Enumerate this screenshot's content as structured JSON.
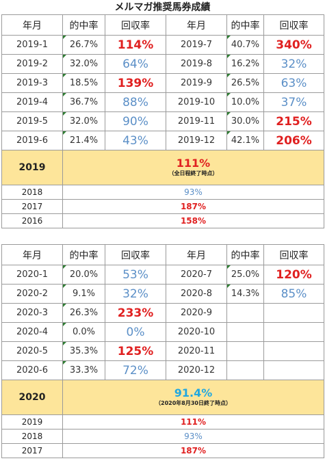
{
  "title": "メルマガ推奨馬券成績",
  "headers": [
    "年月",
    "的中率",
    "回収率",
    "年月",
    "的中率",
    "回収率"
  ],
  "section2019": {
    "rows": [
      {
        "m1": "2019-1",
        "h1": "26.7%",
        "r1": "114%",
        "c1": "red",
        "m2": "2019-7",
        "h2": "40.7%",
        "r2": "340%",
        "c2": "red"
      },
      {
        "m1": "2019-2",
        "h1": "32.0%",
        "r1": "64%",
        "c1": "blue",
        "m2": "2019-8",
        "h2": "16.2%",
        "r2": "32%",
        "c2": "blue"
      },
      {
        "m1": "2019-3",
        "h1": "18.5%",
        "r1": "139%",
        "c1": "red",
        "m2": "2019-9",
        "h2": "26.5%",
        "r2": "63%",
        "c2": "blue"
      },
      {
        "m1": "2019-4",
        "h1": "36.7%",
        "r1": "88%",
        "c1": "blue",
        "m2": "2019-10",
        "h2": "10.0%",
        "r2": "37%",
        "c2": "blue"
      },
      {
        "m1": "2019-5",
        "h1": "32.0%",
        "r1": "90%",
        "c1": "blue",
        "m2": "2019-11",
        "h2": "30.0%",
        "r2": "215%",
        "c2": "red"
      },
      {
        "m1": "2019-6",
        "h1": "21.4%",
        "r1": "43%",
        "c1": "blue",
        "m2": "2019-12",
        "h2": "42.1%",
        "r2": "206%",
        "c2": "red"
      }
    ],
    "summary": {
      "year": "2019",
      "value": "111%",
      "note": "（全日程終了時点）"
    },
    "past": [
      {
        "year": "2018",
        "value": "93%",
        "color": "blue"
      },
      {
        "year": "2017",
        "value": "187%",
        "color": "red"
      },
      {
        "year": "2016",
        "value": "158%",
        "color": "red"
      }
    ]
  },
  "section2020": {
    "rows": [
      {
        "m1": "2020-1",
        "h1": "20.0%",
        "r1": "53%",
        "c1": "blue",
        "m2": "2020-7",
        "h2": "25.0%",
        "r2": "120%",
        "c2": "red"
      },
      {
        "m1": "2020-2",
        "h1": "9.1%",
        "r1": "32%",
        "c1": "blue",
        "m2": "2020-8",
        "h2": "14.3%",
        "r2": "85%",
        "c2": "blue"
      },
      {
        "m1": "2020-3",
        "h1": "26.3%",
        "r1": "233%",
        "c1": "red",
        "m2": "2020-9",
        "h2": "",
        "r2": "",
        "c2": "blue"
      },
      {
        "m1": "2020-4",
        "h1": "0.0%",
        "r1": "0%",
        "c1": "blue",
        "m2": "2020-10",
        "h2": "",
        "r2": "",
        "c2": "blue"
      },
      {
        "m1": "2020-5",
        "h1": "35.3%",
        "r1": "125%",
        "c1": "red",
        "m2": "2020-11",
        "h2": "",
        "r2": "",
        "c2": "blue"
      },
      {
        "m1": "2020-6",
        "h1": "33.3%",
        "r1": "72%",
        "c1": "blue",
        "m2": "2020-12",
        "h2": "",
        "r2": "",
        "c2": "blue"
      }
    ],
    "summary": {
      "year": "2020",
      "value": "91.4%",
      "note": "（2020年8月30日終了時点）"
    },
    "past": [
      {
        "year": "2019",
        "value": "111%",
        "color": "red"
      },
      {
        "year": "2018",
        "value": "93%",
        "color": "blue"
      },
      {
        "year": "2017",
        "value": "187%",
        "color": "red"
      }
    ]
  },
  "colors": {
    "red": "#e02020",
    "blue": "#5b8fc7",
    "cyan": "#22a8e0",
    "summary_bg": "#fde59a",
    "tick": "#2e7d32"
  }
}
